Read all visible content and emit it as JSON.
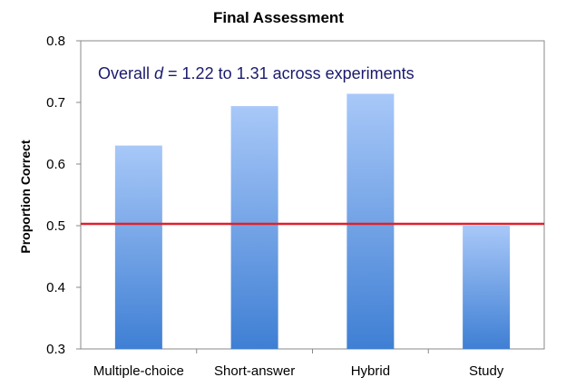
{
  "chart_data": {
    "type": "bar",
    "title": "Final Assessment",
    "xlabel": "",
    "ylabel": "Proportion Correct",
    "categories": [
      "Multiple-choice",
      "Short-answer",
      "Hybrid",
      "Study"
    ],
    "values": [
      0.63,
      0.694,
      0.714,
      0.5
    ],
    "ylim": [
      0.3,
      0.8
    ],
    "y_ticks": [
      "0.3",
      "0.4",
      "0.5",
      "0.6",
      "0.7",
      "0.8"
    ],
    "grid": false,
    "legend": "none",
    "reference_line": {
      "y": 0.503,
      "color": "#e0202a"
    },
    "annotation": {
      "prefix": "Overall ",
      "italic": "d",
      "suffix": " = 1.22 to 1.31 across experiments",
      "color": "#1a1a6e"
    },
    "bar_color_top": "#a8c8f8",
    "bar_color_bottom": "#3f7fd4"
  }
}
